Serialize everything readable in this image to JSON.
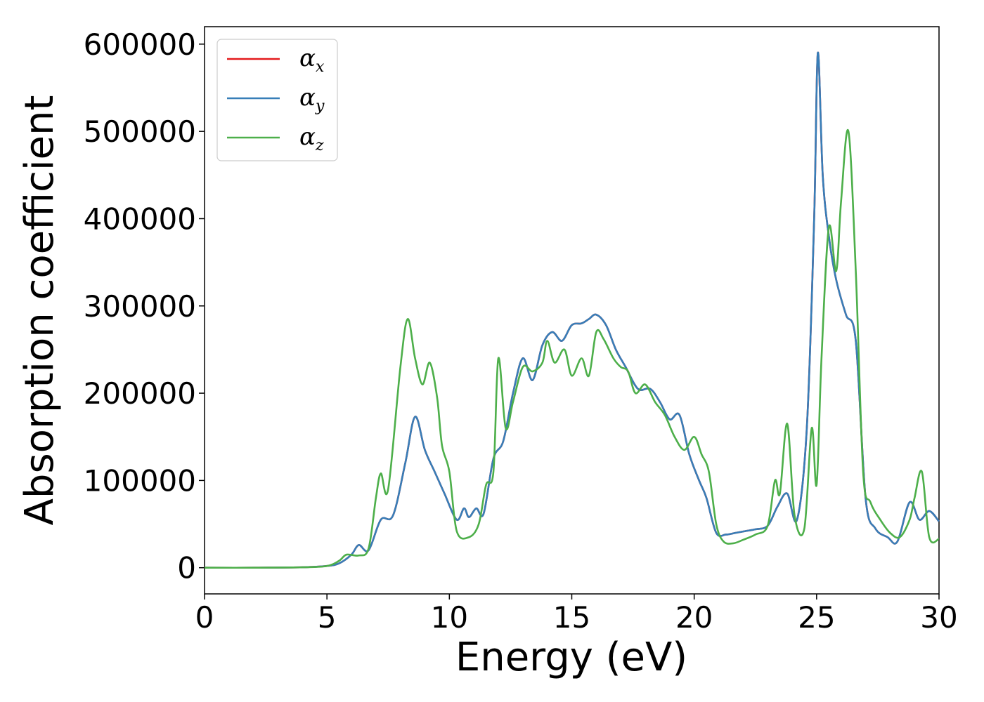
{
  "chart_data": {
    "type": "line",
    "xlabel": "Energy (eV)",
    "ylabel": "Absorption coefficient",
    "xlim": [
      0,
      30
    ],
    "ylim": [
      -30000,
      620000
    ],
    "grid": false,
    "legend_position": "top-left",
    "x_ticks": [
      0,
      5,
      10,
      15,
      20,
      25,
      30
    ],
    "x_tick_labels": [
      "0",
      "5",
      "10",
      "15",
      "20",
      "25",
      "30"
    ],
    "y_ticks": [
      0,
      100000,
      200000,
      300000,
      400000,
      500000,
      600000
    ],
    "y_tick_labels": [
      "0",
      "100000",
      "200000",
      "300000",
      "400000",
      "500000",
      "600000"
    ],
    "series": [
      {
        "name": "α_x",
        "legend_symbol": "α",
        "legend_sub": "x",
        "color": "#e41a1c",
        "x": [
          0,
          2,
          4,
          5,
          5.5,
          6,
          6.3,
          6.7,
          7.2,
          7.7,
          8.2,
          8.6,
          9.0,
          9.4,
          9.8,
          10.3,
          10.6,
          10.8,
          11.1,
          11.4,
          11.8,
          12.2,
          12.6,
          13.0,
          13.4,
          13.8,
          14.2,
          14.6,
          15.0,
          15.4,
          15.7,
          16.0,
          16.4,
          16.8,
          17.2,
          17.7,
          18.2,
          18.6,
          19.0,
          19.4,
          19.8,
          20.2,
          20.5,
          20.9,
          21.3,
          21.7,
          22.1,
          22.5,
          23.0,
          23.4,
          23.8,
          24.2,
          24.6,
          24.9,
          25.05,
          25.25,
          25.5,
          25.8,
          26.2,
          26.6,
          27.0,
          27.4,
          27.9,
          28.3,
          28.8,
          29.2,
          29.6,
          30
        ],
        "values": [
          0,
          0,
          500,
          2000,
          5000,
          15000,
          26000,
          20000,
          55000,
          60000,
          120000,
          173000,
          135000,
          110000,
          85000,
          55000,
          68000,
          58000,
          68000,
          62000,
          125000,
          145000,
          200000,
          240000,
          215000,
          255000,
          270000,
          260000,
          278000,
          280000,
          285000,
          290000,
          278000,
          250000,
          230000,
          205000,
          205000,
          190000,
          170000,
          175000,
          130000,
          100000,
          80000,
          40000,
          38000,
          40000,
          42000,
          44000,
          48000,
          70000,
          85000,
          55000,
          160000,
          400000,
          590000,
          450000,
          380000,
          330000,
          290000,
          260000,
          80000,
          45000,
          35000,
          30000,
          75000,
          55000,
          65000,
          53000
        ]
      },
      {
        "name": "α_y",
        "legend_symbol": "α",
        "legend_sub": "y",
        "color": "#377eb8",
        "x": [
          0,
          2,
          4,
          5,
          5.5,
          6,
          6.3,
          6.7,
          7.2,
          7.7,
          8.2,
          8.6,
          9.0,
          9.4,
          9.8,
          10.3,
          10.6,
          10.8,
          11.1,
          11.4,
          11.8,
          12.2,
          12.6,
          13.0,
          13.4,
          13.8,
          14.2,
          14.6,
          15.0,
          15.4,
          15.7,
          16.0,
          16.4,
          16.8,
          17.2,
          17.7,
          18.2,
          18.6,
          19.0,
          19.4,
          19.8,
          20.2,
          20.5,
          20.9,
          21.3,
          21.7,
          22.1,
          22.5,
          23.0,
          23.4,
          23.8,
          24.2,
          24.6,
          24.9,
          25.05,
          25.25,
          25.5,
          25.8,
          26.2,
          26.6,
          27.0,
          27.4,
          27.9,
          28.3,
          28.8,
          29.2,
          29.6,
          30
        ],
        "values": [
          0,
          0,
          500,
          2000,
          5000,
          15000,
          26000,
          20000,
          55000,
          60000,
          120000,
          173000,
          135000,
          110000,
          85000,
          55000,
          68000,
          58000,
          68000,
          62000,
          125000,
          145000,
          200000,
          240000,
          215000,
          255000,
          270000,
          260000,
          278000,
          280000,
          285000,
          290000,
          278000,
          250000,
          230000,
          205000,
          205000,
          190000,
          170000,
          175000,
          130000,
          100000,
          80000,
          40000,
          38000,
          40000,
          42000,
          44000,
          48000,
          70000,
          85000,
          55000,
          160000,
          400000,
          590000,
          450000,
          380000,
          330000,
          290000,
          260000,
          80000,
          45000,
          35000,
          30000,
          75000,
          55000,
          65000,
          53000
        ]
      },
      {
        "name": "α_z",
        "legend_symbol": "α",
        "legend_sub": "z",
        "color": "#4daf4a",
        "x": [
          0,
          2,
          4,
          5,
          5.5,
          5.8,
          6.3,
          6.7,
          7.0,
          7.2,
          7.5,
          8.0,
          8.3,
          8.6,
          8.9,
          9.2,
          9.5,
          9.7,
          10.0,
          10.3,
          10.8,
          11.2,
          11.5,
          11.8,
          12.0,
          12.3,
          12.6,
          13.0,
          13.4,
          13.8,
          14.0,
          14.3,
          14.7,
          15.0,
          15.4,
          15.7,
          16.0,
          16.3,
          16.7,
          17.0,
          17.3,
          17.6,
          18.0,
          18.4,
          18.8,
          19.2,
          19.6,
          20.0,
          20.3,
          20.6,
          20.9,
          21.2,
          21.6,
          22.0,
          22.5,
          23.0,
          23.3,
          23.5,
          23.8,
          24.1,
          24.5,
          24.8,
          25.0,
          25.2,
          25.5,
          25.8,
          26.0,
          26.3,
          26.6,
          26.9,
          27.2,
          27.6,
          28.0,
          28.4,
          28.8,
          29.0,
          29.3,
          29.6,
          30
        ],
        "values": [
          0,
          0,
          500,
          2000,
          8000,
          15000,
          14000,
          22000,
          80000,
          108000,
          90000,
          230000,
          285000,
          240000,
          210000,
          235000,
          195000,
          140000,
          110000,
          42000,
          35000,
          50000,
          95000,
          110000,
          240000,
          160000,
          190000,
          230000,
          225000,
          235000,
          260000,
          235000,
          250000,
          220000,
          240000,
          220000,
          270000,
          262000,
          240000,
          230000,
          225000,
          200000,
          210000,
          190000,
          175000,
          150000,
          135000,
          150000,
          130000,
          110000,
          50000,
          30000,
          28000,
          32000,
          38000,
          48000,
          100000,
          85000,
          165000,
          60000,
          45000,
          160000,
          95000,
          240000,
          390000,
          340000,
          420000,
          500000,
          340000,
          110000,
          75000,
          55000,
          40000,
          35000,
          55000,
          80000,
          110000,
          35000,
          33000
        ]
      }
    ]
  }
}
